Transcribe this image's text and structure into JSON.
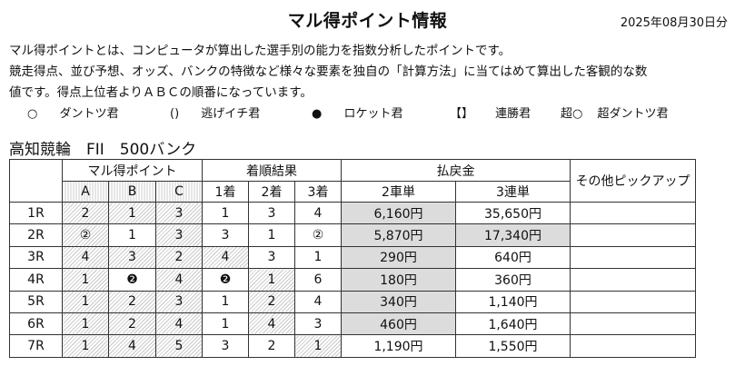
{
  "header": {
    "title": "マル得ポイント情報",
    "date": "2025年08月30日分"
  },
  "description": [
    "マル得ポイントとは、コンピュータが算出した選手別の能力を指数分析したポイントです。",
    "競走得点、並び予想、オッズ、バンクの特徴など様々な要素を独自の「計算方法」に当てはめて算出した客観的な数",
    "値です。得点上位者よりＡＢＣの順番になっています。"
  ],
  "legend": [
    {
      "mark": "○",
      "label": "ダントツ君"
    },
    {
      "mark": "()",
      "label": "逃げイチ君"
    },
    {
      "mark": "●",
      "label": "ロケット君"
    },
    {
      "mark": "【】",
      "label": "連勝君"
    },
    {
      "mark": "超○",
      "label": "超ダントツ君"
    }
  ],
  "race_info": "高知競輪　FII　500バンク",
  "table": {
    "group_headers": {
      "points": "マル得ポイント",
      "results": "着順結果",
      "payout": "払戻金",
      "other": "その他ピックアップ"
    },
    "sub_headers": {
      "a": "A",
      "b": "B",
      "c": "C",
      "first": "1着",
      "second": "2着",
      "third": "3着",
      "exacta": "2車単",
      "trifecta": "3連単"
    },
    "rows": [
      {
        "race": "1R",
        "a": "2",
        "b": "1",
        "c": "3",
        "first": "1",
        "second": "3",
        "third": "4",
        "exacta": "6,160円",
        "trifecta": "35,650円",
        "other": ""
      },
      {
        "race": "2R",
        "a": "②",
        "b": "1",
        "c": "3",
        "first": "3",
        "second": "1",
        "third": "②",
        "exacta": "5,870円",
        "trifecta": "17,340円",
        "other": ""
      },
      {
        "race": "3R",
        "a": "4",
        "b": "3",
        "c": "2",
        "first": "4",
        "second": "3",
        "third": "1",
        "exacta": "290円",
        "trifecta": "640円",
        "other": ""
      },
      {
        "race": "4R",
        "a": "1",
        "b": "❷",
        "c": "4",
        "first": "❷",
        "second": "1",
        "third": "6",
        "exacta": "180円",
        "trifecta": "360円",
        "other": ""
      },
      {
        "race": "5R",
        "a": "1",
        "b": "2",
        "c": "3",
        "first": "1",
        "second": "2",
        "third": "4",
        "exacta": "340円",
        "trifecta": "1,140円",
        "other": ""
      },
      {
        "race": "6R",
        "a": "1",
        "b": "2",
        "c": "4",
        "first": "1",
        "second": "4",
        "third": "3",
        "exacta": "460円",
        "trifecta": "1,640円",
        "other": ""
      },
      {
        "race": "7R",
        "a": "1",
        "b": "4",
        "c": "5",
        "first": "3",
        "second": "2",
        "third": "1",
        "exacta": "1,190円",
        "trifecta": "1,550円",
        "other": ""
      }
    ]
  },
  "shading": {
    "points_hatched": [
      [
        true,
        true,
        true
      ],
      [
        true,
        false,
        true
      ],
      [
        true,
        true,
        true
      ],
      [
        true,
        false,
        true
      ],
      [
        true,
        true,
        true
      ],
      [
        true,
        true,
        true
      ],
      [
        true,
        true,
        true
      ]
    ],
    "results_hatched": [
      [
        false,
        false,
        false
      ],
      [
        false,
        false,
        false
      ],
      [
        true,
        false,
        false
      ],
      [
        false,
        true,
        false
      ],
      [
        false,
        true,
        false
      ],
      [
        false,
        true,
        false
      ],
      [
        false,
        false,
        true
      ]
    ],
    "payout_shaded": [
      [
        true,
        false
      ],
      [
        true,
        true
      ],
      [
        true,
        false
      ],
      [
        true,
        false
      ],
      [
        true,
        false
      ],
      [
        true,
        false
      ],
      [
        false,
        false
      ]
    ]
  }
}
